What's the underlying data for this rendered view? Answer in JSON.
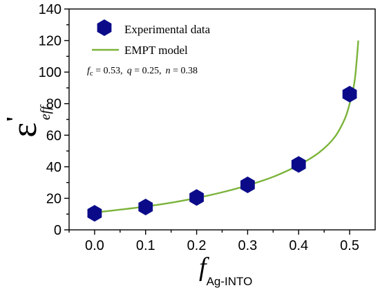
{
  "chart_data": {
    "type": "scatter",
    "x_ticks": [
      "0.0",
      "0.1",
      "0.2",
      "0.3",
      "0.4",
      "0.5"
    ],
    "y_ticks": [
      "0",
      "20",
      "40",
      "60",
      "80",
      "100",
      "120",
      "140"
    ],
    "xlim": [
      -0.05,
      0.55
    ],
    "ylim": [
      0,
      140
    ],
    "xlabel": {
      "main": "f",
      "sub": "Ag-INTO"
    },
    "ylabel": {
      "main": "ε",
      "prime": "'",
      "sub": "eff"
    },
    "series": [
      {
        "name": "Experimental data",
        "kind": "scatter",
        "marker": "hexagon",
        "color": "#0b0b8a",
        "x": [
          0.0,
          0.1,
          0.2,
          0.3,
          0.4,
          0.5
        ],
        "y": [
          10.5,
          14.5,
          20.5,
          28.5,
          41.5,
          86
        ]
      },
      {
        "name": "EMPT model",
        "kind": "line",
        "color": "#7bb33a",
        "x": [
          0.0,
          0.05,
          0.1,
          0.15,
          0.2,
          0.25,
          0.3,
          0.35,
          0.4,
          0.44,
          0.47,
          0.49,
          0.5,
          0.51,
          0.517
        ],
        "y": [
          11,
          12.8,
          14.8,
          17.2,
          20.2,
          23.8,
          28.2,
          33.6,
          41,
          49,
          58.5,
          70,
          80,
          95,
          120
        ]
      }
    ],
    "annotation": {
      "fc_label": "f",
      "fc_sub": "c",
      "fc_value": " = 0.53,",
      "q_label": "q",
      "q_value": " =  0.25,",
      "n_label": "n",
      "n_value": " = 0.38"
    },
    "legend_position": "top-left",
    "grid": false
  }
}
